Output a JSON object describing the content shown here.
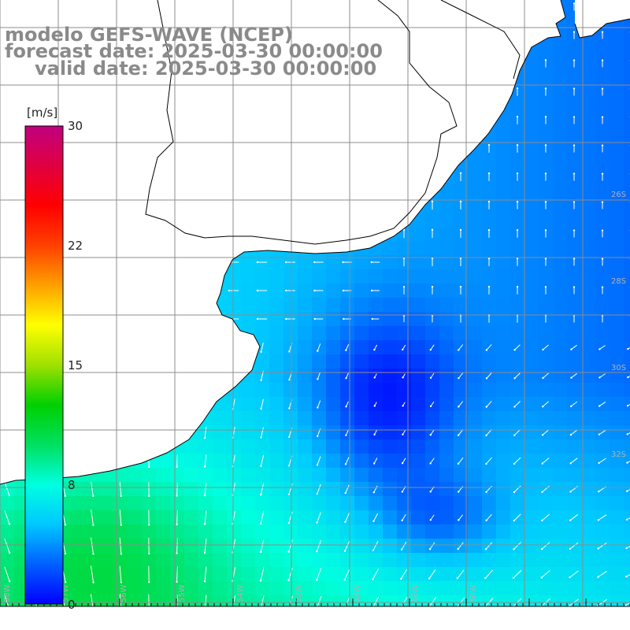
{
  "title": {
    "line1": "modelo GEFS-WAVE (NCEP)",
    "line2": "forecast date: 2025-03-30 00:00:00",
    "line3": "valid date: 2025-03-30 00:00:00"
  },
  "colorbar": {
    "unit": "[m/s]",
    "ticks": [
      "30",
      "22",
      "15",
      "8",
      "0"
    ],
    "min": 0,
    "max": 30,
    "colors": [
      "#0000ff",
      "#0060ff",
      "#00c8ff",
      "#00ffe0",
      "#00e060",
      "#00d000",
      "#a0e000",
      "#ffff00",
      "#ffa000",
      "#ff4000",
      "#ff0000",
      "#e00040",
      "#c00080"
    ]
  },
  "map": {
    "variable": "wind speed",
    "grid": true,
    "grid_color": "#8c8c8c",
    "land_color": "#ffffff",
    "coastline_color": "#000000",
    "lon_labels": [
      "58W",
      "57W",
      "56W",
      "55W",
      "54W",
      "53W",
      "52W",
      "51W",
      "50W"
    ],
    "right_labels": [
      "26S",
      "28S",
      "30S",
      "32S"
    ]
  }
}
